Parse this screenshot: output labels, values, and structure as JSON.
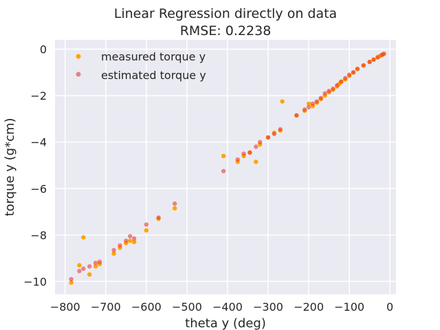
{
  "chart_data": {
    "type": "scatter",
    "title": "Linear Regression directly on data",
    "subtitle": "RMSE: 0.2238",
    "xlabel": "theta y (deg)",
    "ylabel": "torque y (g*cm)",
    "xlim": [
      -825,
      15
    ],
    "ylim": [
      -10.55,
      0.4
    ],
    "xticks": [
      -800,
      -700,
      -600,
      -500,
      -400,
      -300,
      -200,
      -100,
      0
    ],
    "xtick_labels": [
      "−800",
      "−700",
      "−600",
      "−500",
      "−400",
      "−300",
      "−200",
      "−100",
      "0"
    ],
    "yticks": [
      0,
      -2,
      -4,
      -6,
      -8,
      -10
    ],
    "ytick_labels": [
      "0",
      "−2",
      "−4",
      "−6",
      "−8",
      "−10"
    ],
    "grid": true,
    "legend": "top-left",
    "colors": {
      "background": "#eaeaf2",
      "grid": "#ffffff",
      "measured": "#ffa500",
      "estimated": "#e83a3a"
    },
    "series": [
      {
        "name": "measured torque y",
        "x": [
          -785,
          -765,
          -755,
          -740,
          -725,
          -715,
          -680,
          -665,
          -650,
          -640,
          -630,
          -600,
          -570,
          -530,
          -410,
          -375,
          -360,
          -345,
          -330,
          -320,
          -300,
          -285,
          -270,
          -265,
          -230,
          -210,
          -200,
          -190,
          -180,
          -170,
          -160,
          -150,
          -140,
          -130,
          -125,
          -120,
          -110,
          -100,
          -90,
          -80,
          -65,
          -50,
          -40,
          -30,
          -25,
          -20,
          -15
        ],
        "y": [
          -10.05,
          -9.3,
          -8.1,
          -9.7,
          -9.35,
          -9.25,
          -8.8,
          -8.55,
          -8.35,
          -8.25,
          -8.3,
          -7.8,
          -7.3,
          -6.85,
          -4.6,
          -4.85,
          -4.6,
          -4.45,
          -4.85,
          -4.1,
          -3.8,
          -3.6,
          -3.5,
          -2.25,
          -2.85,
          -2.65,
          -2.35,
          -2.45,
          -2.3,
          -2.15,
          -2.0,
          -1.85,
          -1.75,
          -1.6,
          -1.5,
          -1.4,
          -1.3,
          -1.15,
          -1.0,
          -0.85,
          -0.7,
          -0.55,
          -0.45,
          -0.35,
          -0.3,
          -0.25,
          -0.2
        ]
      },
      {
        "name": "estimated torque y",
        "x": [
          -785,
          -765,
          -755,
          -740,
          -725,
          -715,
          -680,
          -665,
          -650,
          -640,
          -630,
          -600,
          -570,
          -530,
          -410,
          -375,
          -360,
          -345,
          -330,
          -320,
          -300,
          -285,
          -270,
          -230,
          -210,
          -200,
          -190,
          -180,
          -170,
          -160,
          -150,
          -140,
          -130,
          -120,
          -110,
          -100,
          -90,
          -80,
          -65,
          -50,
          -40,
          -30,
          -20,
          -15
        ],
        "y": [
          -9.9,
          -9.55,
          -9.45,
          -9.35,
          -9.2,
          -9.15,
          -8.65,
          -8.45,
          -8.25,
          -8.05,
          -8.15,
          -7.55,
          -7.25,
          -6.65,
          -5.25,
          -4.75,
          -4.5,
          -4.45,
          -4.2,
          -4.0,
          -3.8,
          -3.65,
          -3.45,
          -2.85,
          -2.6,
          -2.5,
          -2.35,
          -2.25,
          -2.1,
          -1.9,
          -1.8,
          -1.7,
          -1.55,
          -1.4,
          -1.25,
          -1.1,
          -1.0,
          -0.85,
          -0.7,
          -0.55,
          -0.45,
          -0.35,
          -0.25,
          -0.2
        ]
      }
    ]
  }
}
